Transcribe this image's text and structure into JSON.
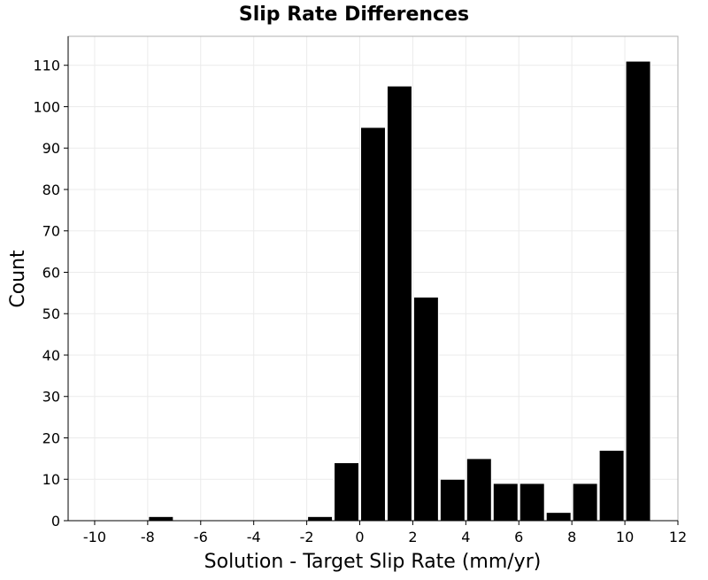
{
  "chart_data": {
    "type": "bar",
    "title": "Slip Rate Differences",
    "xlabel": "Solution - Target Slip Rate (mm/yr)",
    "ylabel": "Count",
    "xlim": [
      -11,
      12
    ],
    "ylim": [
      0,
      117
    ],
    "xticks": [
      -10,
      -8,
      -6,
      -4,
      -2,
      0,
      2,
      4,
      6,
      8,
      10,
      12
    ],
    "yticks": [
      0,
      10,
      20,
      30,
      40,
      50,
      60,
      70,
      80,
      90,
      100,
      110
    ],
    "grid": true,
    "bin_width": 1,
    "bars": [
      {
        "x0": -8,
        "x1": -7,
        "value": 1
      },
      {
        "x0": -2,
        "x1": -1,
        "value": 1
      },
      {
        "x0": -1,
        "x1": 0,
        "value": 14
      },
      {
        "x0": 0,
        "x1": 1,
        "value": 95
      },
      {
        "x0": 1,
        "x1": 2,
        "value": 105
      },
      {
        "x0": 2,
        "x1": 3,
        "value": 54
      },
      {
        "x0": 3,
        "x1": 4,
        "value": 10
      },
      {
        "x0": 4,
        "x1": 5,
        "value": 15
      },
      {
        "x0": 5,
        "x1": 6,
        "value": 9
      },
      {
        "x0": 6,
        "x1": 7,
        "value": 9
      },
      {
        "x0": 7,
        "x1": 8,
        "value": 2
      },
      {
        "x0": 8,
        "x1": 9,
        "value": 9
      },
      {
        "x0": 9,
        "x1": 10,
        "value": 17
      },
      {
        "x0": 10,
        "x1": 11,
        "value": 111
      }
    ],
    "colors": {
      "bar": "#000000",
      "bar_edge": "#ffffff",
      "grid": "#ebebeb",
      "axis": "#b0b0b0"
    }
  }
}
